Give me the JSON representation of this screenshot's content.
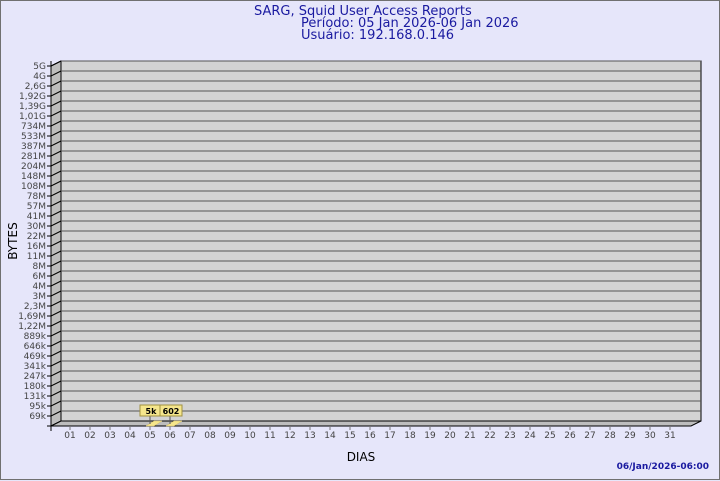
{
  "header": {
    "title": "SARG, Squid User Access Reports",
    "period": "Período: 05 Jan 2026-06 Jan 2026",
    "user": "Usuário: 192.168.0.146"
  },
  "footer": {
    "generated": "06/Jan/2026-06:00"
  },
  "chart_data": {
    "type": "bar",
    "xlabel": "DIAS",
    "ylabel": "BYTES",
    "y_scale": "log",
    "categories": [
      "01",
      "02",
      "03",
      "04",
      "05",
      "06",
      "07",
      "08",
      "09",
      "10",
      "11",
      "12",
      "13",
      "14",
      "15",
      "16",
      "17",
      "18",
      "19",
      "20",
      "21",
      "22",
      "23",
      "24",
      "25",
      "26",
      "27",
      "28",
      "29",
      "30",
      "31"
    ],
    "y_tick_labels": [
      "5G",
      "4G",
      "2,6G",
      "1,92G",
      "1,39G",
      "1,01G",
      "734M",
      "533M",
      "387M",
      "281M",
      "204M",
      "148M",
      "108M",
      "78M",
      "57M",
      "41M",
      "30M",
      "22M",
      "16M",
      "11M",
      "8M",
      "6M",
      "4M",
      "3M",
      "2,3M",
      "1,69M",
      "1,22M",
      "889k",
      "646k",
      "469k",
      "341k",
      "247k",
      "180k",
      "131k",
      "95k",
      "69k"
    ],
    "bars": [
      {
        "category": "05",
        "value": 5000,
        "label": "5k"
      },
      {
        "category": "06",
        "value": 602,
        "label": "602"
      }
    ],
    "grid": true,
    "colors": {
      "background": "#e6e6fa",
      "plot": "#d3d3d3",
      "bar": "#f5e68c",
      "text": "#1a1aa0"
    }
  }
}
